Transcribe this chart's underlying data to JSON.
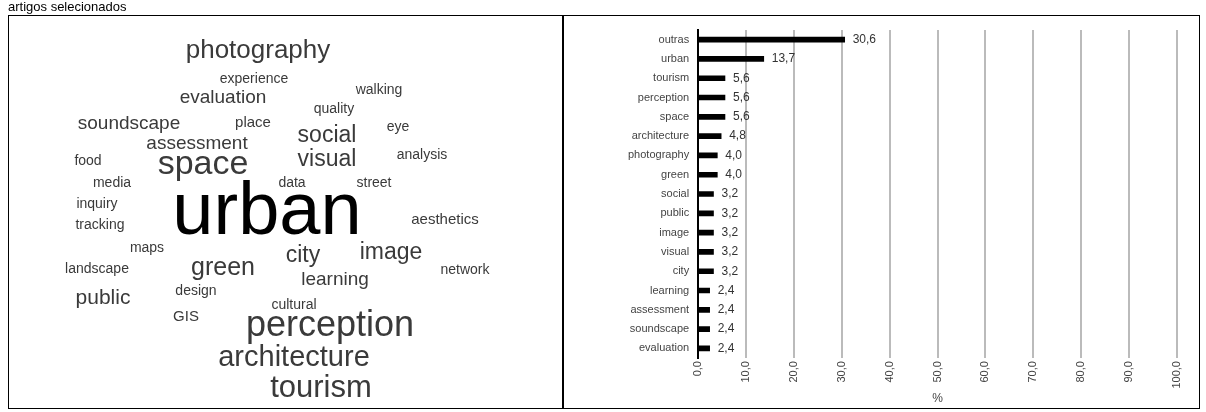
{
  "chart_data": [
    {
      "type": "other",
      "title": "artigos selecionados",
      "annotations": [
        "photography",
        "experience",
        "walking",
        "evaluation",
        "quality",
        "soundscape",
        "place",
        "social",
        "eye",
        "assessment",
        "space",
        "visual",
        "food",
        "analysis",
        "media",
        "data",
        "street",
        "urban",
        "inquiry",
        "tracking",
        "aesthetics",
        "maps",
        "city",
        "image",
        "landscape",
        "green",
        "network",
        "learning",
        "public",
        "design",
        "cultural",
        "GIS",
        "perception",
        "architecture",
        "tourism"
      ]
    },
    {
      "type": "bar",
      "orientation": "horizontal",
      "categories": [
        "outras",
        "urban",
        "tourism",
        "perception",
        "space",
        "architecture",
        "photography",
        "green",
        "social",
        "public",
        "image",
        "visual",
        "city",
        "learning",
        "assessment",
        "soundscape",
        "evaluation"
      ],
      "values": [
        30.6,
        13.7,
        5.6,
        5.6,
        5.6,
        4.8,
        4.0,
        4.0,
        3.2,
        3.2,
        3.2,
        3.2,
        3.2,
        2.4,
        2.4,
        2.4,
        2.4
      ],
      "value_labels": [
        "30,6",
        "13,7",
        "5,6",
        "5,6",
        "5,6",
        "4,8",
        "4,0",
        "4,0",
        "3,2",
        "3,2",
        "3,2",
        "3,2",
        "3,2",
        "2,4",
        "2,4",
        "2,4",
        "2,4"
      ],
      "color": "#000000",
      "xlabel": "%",
      "xlim": [
        0,
        100
      ],
      "xticks": [
        {
          "value": 0,
          "label": "0,0"
        },
        {
          "value": 10,
          "label": "10,0"
        },
        {
          "value": 20,
          "label": "20,0"
        },
        {
          "value": 30,
          "label": "30,0"
        },
        {
          "value": 40,
          "label": "40,0"
        },
        {
          "value": 50,
          "label": "50,0"
        },
        {
          "value": 60,
          "label": "60,0"
        },
        {
          "value": 70,
          "label": "70,0"
        },
        {
          "value": 80,
          "label": "80,0"
        },
        {
          "value": 90,
          "label": "90,0"
        },
        {
          "value": 100,
          "label": "100,0"
        }
      ],
      "grid": "x",
      "legend": false
    }
  ]
}
